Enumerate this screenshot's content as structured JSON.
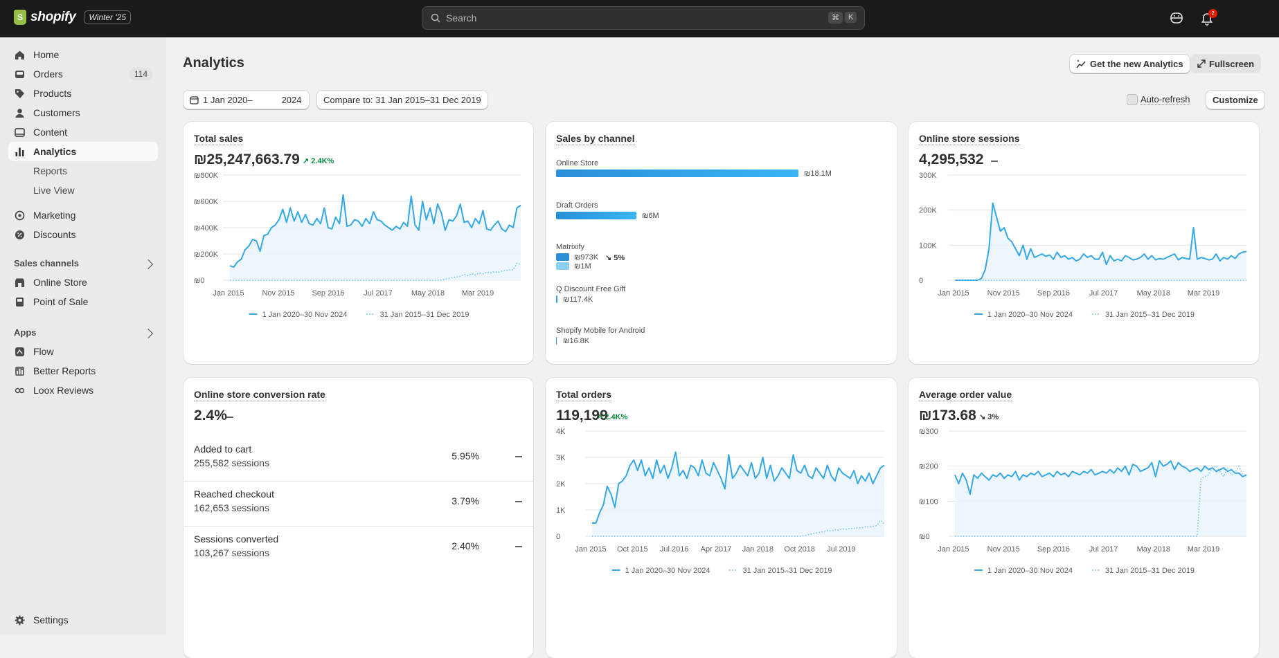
{
  "topbar": {
    "brand": "shopify",
    "edition": "Winter '25",
    "search_placeholder": "Search",
    "kbd_cmd": "⌘",
    "kbd_k": "K",
    "notifications_count": "2"
  },
  "sidebar": {
    "items": [
      {
        "label": "Home",
        "icon": "home-icon"
      },
      {
        "label": "Orders",
        "icon": "orders-icon",
        "count": "114"
      },
      {
        "label": "Products",
        "icon": "tag-icon"
      },
      {
        "label": "Customers",
        "icon": "person-icon"
      },
      {
        "label": "Content",
        "icon": "content-icon"
      },
      {
        "label": "Analytics",
        "icon": "chart-icon"
      },
      {
        "label": "Reports"
      },
      {
        "label": "Live View"
      },
      {
        "label": "Marketing",
        "icon": "target-icon"
      },
      {
        "label": "Discounts",
        "icon": "discount-icon"
      }
    ],
    "sales_channels_title": "Sales channels",
    "sales_channels": [
      {
        "label": "Online Store",
        "icon": "store-icon"
      },
      {
        "label": "Point of Sale",
        "icon": "pos-icon"
      }
    ],
    "apps_title": "Apps",
    "apps": [
      {
        "label": "Flow",
        "icon": "flow-icon"
      },
      {
        "label": "Better Reports",
        "icon": "reports-icon"
      },
      {
        "label": "Loox Reviews",
        "icon": "loox-icon"
      }
    ],
    "settings_label": "Settings"
  },
  "page": {
    "title": "Analytics",
    "new_analytics_label": "Get the new Analytics",
    "fullscreen_label": "Fullscreen",
    "date_range_start": "1 Jan 2020–",
    "date_range_end": "2024",
    "compare_label": "Compare to: 31 Jan 2015–31 Dec 2019",
    "autorefresh_label": "Auto-refresh",
    "customize_label": "Customize"
  },
  "legend": {
    "current": "1 Jan 2020–30 Nov 2024",
    "previous": "31 Jan 2015–31 Dec 2019"
  },
  "cards": {
    "total_sales": {
      "title": "Total sales",
      "value": "₪25,247,663.79",
      "trend": "2.4K%"
    },
    "sales_by_channel": {
      "title": "Sales by channel"
    },
    "sessions": {
      "title": "Online store sessions",
      "value": "4,295,532"
    },
    "conversion": {
      "title": "Online store conversion rate",
      "value": "2.4%",
      "rows": [
        {
          "label": "Added to cart",
          "sessions": "255,582 sessions",
          "value": "5.95%"
        },
        {
          "label": "Reached checkout",
          "sessions": "162,653 sessions",
          "value": "3.79%"
        },
        {
          "label": "Sessions converted",
          "sessions": "103,267 sessions",
          "value": "2.40%"
        }
      ]
    },
    "total_orders": {
      "title": "Total orders",
      "value": "119,199",
      "trend": "2.4K%"
    },
    "aov": {
      "title": "Average order value",
      "value": "₪173.68",
      "trend": "3%"
    }
  },
  "chart_data": [
    {
      "type": "line",
      "title": "Total sales",
      "x_ticks": [
        "Jan 2015",
        "Nov 2015",
        "Sep 2016",
        "Jul 2017",
        "May 2018",
        "Mar 2019"
      ],
      "y_ticks": [
        "₪0",
        "₪200K",
        "₪400K",
        "₪600K",
        "₪800K"
      ],
      "ylim": [
        0,
        800000
      ],
      "series": [
        {
          "name": "1 Jan 2020–30 Nov 2024",
          "style": "solid",
          "values": [
            110000,
            100000,
            140000,
            160000,
            230000,
            260000,
            310000,
            300000,
            220000,
            340000,
            350000,
            400000,
            420000,
            460000,
            540000,
            440000,
            550000,
            450000,
            520000,
            440000,
            500000,
            430000,
            420000,
            470000,
            430000,
            550000,
            400000,
            390000,
            480000,
            430000,
            650000,
            410000,
            420000,
            460000,
            450000,
            410000,
            470000,
            430000,
            520000,
            460000,
            450000,
            420000,
            400000,
            380000,
            410000,
            390000,
            440000,
            410000,
            640000,
            420000,
            380000,
            600000,
            460000,
            550000,
            430000,
            580000,
            510000,
            380000,
            460000,
            450000,
            490000,
            580000,
            440000,
            450000,
            400000,
            470000,
            430000,
            530000,
            390000,
            380000,
            420000,
            450000,
            390000,
            370000,
            420000,
            400000,
            550000,
            570000
          ]
        },
        {
          "name": "31 Jan 2015–31 Dec 2019",
          "style": "dotted",
          "values": [
            0,
            0,
            0,
            0,
            0,
            0,
            0,
            0,
            0,
            0,
            0,
            0,
            0,
            0,
            0,
            0,
            0,
            0,
            0,
            0,
            0,
            0,
            0,
            0,
            0,
            0,
            0,
            0,
            0,
            0,
            0,
            0,
            0,
            0,
            0,
            0,
            0,
            0,
            0,
            0,
            0,
            0,
            0,
            0,
            0,
            0,
            0,
            0,
            0,
            0,
            0,
            0,
            0,
            0,
            0,
            0,
            2000,
            8000,
            15000,
            20000,
            25000,
            30000,
            45000,
            35000,
            50000,
            40000,
            55000,
            50000,
            60000,
            55000,
            65000,
            60000,
            70000,
            72000,
            80000,
            78000,
            130000,
            120000
          ]
        }
      ]
    },
    {
      "type": "bar",
      "title": "Sales by channel",
      "categories": [
        "Online Store",
        "Draft Orders",
        "Matrixify",
        "Q Discount Free Gift",
        "Shopify Mobile for Android"
      ],
      "series": [
        {
          "name": "1 Jan 2020–30 Nov 2024",
          "values": [
            18100000,
            6000000,
            973000,
            117400,
            16800
          ],
          "labels": [
            "₪18.1M",
            "₪6M",
            "₪973K",
            "₪117.4K",
            "₪16.8K"
          ]
        },
        {
          "name": "31 Jan 2015–31 Dec 2019",
          "values": [
            null,
            null,
            1000000,
            null,
            null
          ],
          "labels": [
            "",
            "",
            "₪1M",
            "",
            ""
          ]
        }
      ],
      "annotations": [
        {
          "category": "Matrixify",
          "text": "5%"
        }
      ]
    },
    {
      "type": "line",
      "title": "Online store sessions",
      "x_ticks": [
        "Jan 2015",
        "Nov 2015",
        "Sep 2016",
        "Jul 2017",
        "May 2018",
        "Mar 2019"
      ],
      "y_ticks": [
        "0",
        "100K",
        "200K",
        "300K"
      ],
      "ylim": [
        0,
        300000
      ],
      "series": [
        {
          "name": "1 Jan 2020–30 Nov 2024",
          "style": "solid",
          "values": [
            0,
            0,
            0,
            0,
            0,
            0,
            0,
            5000,
            30000,
            90000,
            220000,
            180000,
            140000,
            150000,
            120000,
            110000,
            90000,
            70000,
            100000,
            60000,
            90000,
            65000,
            70000,
            75000,
            68000,
            72000,
            60000,
            80000,
            65000,
            70000,
            60000,
            65000,
            55000,
            60000,
            75000,
            65000,
            70000,
            60000,
            60000,
            80000,
            45000,
            70000,
            55000,
            60000,
            55000,
            70000,
            65000,
            58000,
            60000,
            65000,
            75000,
            60000,
            70000,
            58000,
            62000,
            60000,
            65000,
            70000,
            75000,
            58000,
            65000,
            62000,
            60000,
            150000,
            60000,
            65000,
            62000,
            58000,
            60000,
            75000,
            55000,
            65000,
            60000,
            70000,
            62000,
            75000,
            80000,
            82000
          ]
        },
        {
          "name": "31 Jan 2015–31 Dec 2019",
          "style": "dotted",
          "values": [
            0,
            0,
            0,
            0,
            0,
            0,
            0,
            0,
            0,
            0,
            0,
            0,
            0,
            0,
            0,
            0,
            0,
            0,
            0,
            0,
            0,
            0,
            0,
            0,
            0,
            0,
            0,
            0,
            0,
            0,
            0,
            0,
            0,
            0,
            0,
            0,
            0,
            0,
            0,
            0,
            0,
            0,
            0,
            0,
            0,
            0,
            0,
            0,
            0,
            0,
            0,
            0,
            0,
            0,
            0,
            0,
            0,
            0,
            0,
            0,
            0,
            0,
            0,
            0,
            0,
            0,
            0,
            0,
            0,
            0,
            0,
            0,
            0,
            0,
            0,
            0,
            0,
            0
          ]
        }
      ]
    },
    {
      "type": "line",
      "title": "Total orders",
      "x_ticks": [
        "Jan 2015",
        "Oct 2015",
        "Jul 2016",
        "Apr 2017",
        "Jan 2018",
        "Oct 2018",
        "Jul 2019"
      ],
      "y_ticks": [
        "0",
        "1K",
        "2K",
        "3K",
        "4K"
      ],
      "ylim": [
        0,
        4000
      ],
      "series": [
        {
          "name": "1 Jan 2020–30 Nov 2024",
          "style": "solid",
          "values": [
            500,
            500,
            900,
            1200,
            1900,
            1600,
            1100,
            2000,
            2100,
            2300,
            2700,
            2900,
            2500,
            2900,
            2300,
            2600,
            2200,
            2900,
            2400,
            2700,
            2200,
            2600,
            3200,
            2300,
            2500,
            2200,
            2700,
            2600,
            2300,
            2900,
            2400,
            2300,
            2800,
            2500,
            2200,
            1800,
            3100,
            2200,
            2400,
            2700,
            2500,
            2300,
            2800,
            2200,
            2400,
            3000,
            2200,
            2700,
            2100,
            2300,
            2600,
            2400,
            2200,
            3100,
            2500,
            2400,
            2700,
            2300,
            2200,
            2600,
            2400,
            2200,
            2700,
            2300,
            2100,
            2600,
            2400,
            2300,
            2200,
            2500,
            2000,
            2300,
            2100,
            2400,
            2000,
            2300,
            2600,
            2700
          ]
        },
        {
          "name": "31 Jan 2015–31 Dec 2019",
          "style": "dotted",
          "values": [
            0,
            0,
            0,
            0,
            0,
            0,
            0,
            0,
            0,
            0,
            0,
            0,
            0,
            0,
            0,
            0,
            0,
            0,
            0,
            0,
            0,
            0,
            0,
            0,
            0,
            0,
            0,
            0,
            0,
            0,
            0,
            0,
            0,
            0,
            0,
            0,
            0,
            0,
            0,
            0,
            0,
            0,
            0,
            0,
            0,
            0,
            0,
            0,
            0,
            0,
            0,
            0,
            0,
            0,
            0,
            0,
            20,
            60,
            100,
            120,
            150,
            180,
            220,
            200,
            250,
            230,
            280,
            260,
            300,
            290,
            330,
            320,
            360,
            350,
            380,
            400,
            600,
            480
          ]
        }
      ]
    },
    {
      "type": "line",
      "title": "Average order value",
      "x_ticks": [
        "Jan 2015",
        "Nov 2015",
        "Sep 2016",
        "Jul 2017",
        "May 2018",
        "Mar 2019"
      ],
      "y_ticks": [
        "₪0",
        "₪100",
        "₪200",
        "₪300"
      ],
      "ylim": [
        0,
        300
      ],
      "series": [
        {
          "name": "1 Jan 2020–30 Nov 2024",
          "style": "solid",
          "values": [
            175,
            150,
            180,
            160,
            120,
            175,
            165,
            180,
            170,
            160,
            175,
            170,
            180,
            165,
            175,
            170,
            185,
            160,
            175,
            170,
            180,
            175,
            185,
            170,
            175,
            180,
            170,
            185,
            175,
            180,
            170,
            185,
            180,
            175,
            185,
            180,
            190,
            175,
            180,
            185,
            180,
            190,
            180,
            195,
            185,
            200,
            175,
            205,
            200,
            185,
            190,
            195,
            210,
            170,
            215,
            200,
            205,
            215,
            190,
            210,
            200,
            195,
            185,
            190,
            195,
            185,
            200,
            190,
            195,
            185,
            190,
            195,
            185,
            190,
            180,
            180,
            170,
            175
          ]
        },
        {
          "name": "31 Jan 2015–31 Dec 2019",
          "style": "dotted",
          "values": [
            0,
            0,
            0,
            0,
            0,
            0,
            0,
            0,
            0,
            0,
            0,
            0,
            0,
            0,
            0,
            0,
            0,
            0,
            0,
            0,
            0,
            0,
            0,
            0,
            0,
            0,
            0,
            0,
            0,
            0,
            0,
            0,
            0,
            0,
            0,
            0,
            0,
            0,
            0,
            0,
            0,
            0,
            0,
            0,
            0,
            0,
            0,
            0,
            0,
            0,
            0,
            0,
            0,
            0,
            0,
            0,
            0,
            0,
            0,
            0,
            0,
            0,
            0,
            0,
            0,
            165,
            170,
            175,
            195,
            200,
            185,
            170,
            195,
            175,
            180,
            200,
            175,
            170
          ]
        }
      ]
    }
  ]
}
